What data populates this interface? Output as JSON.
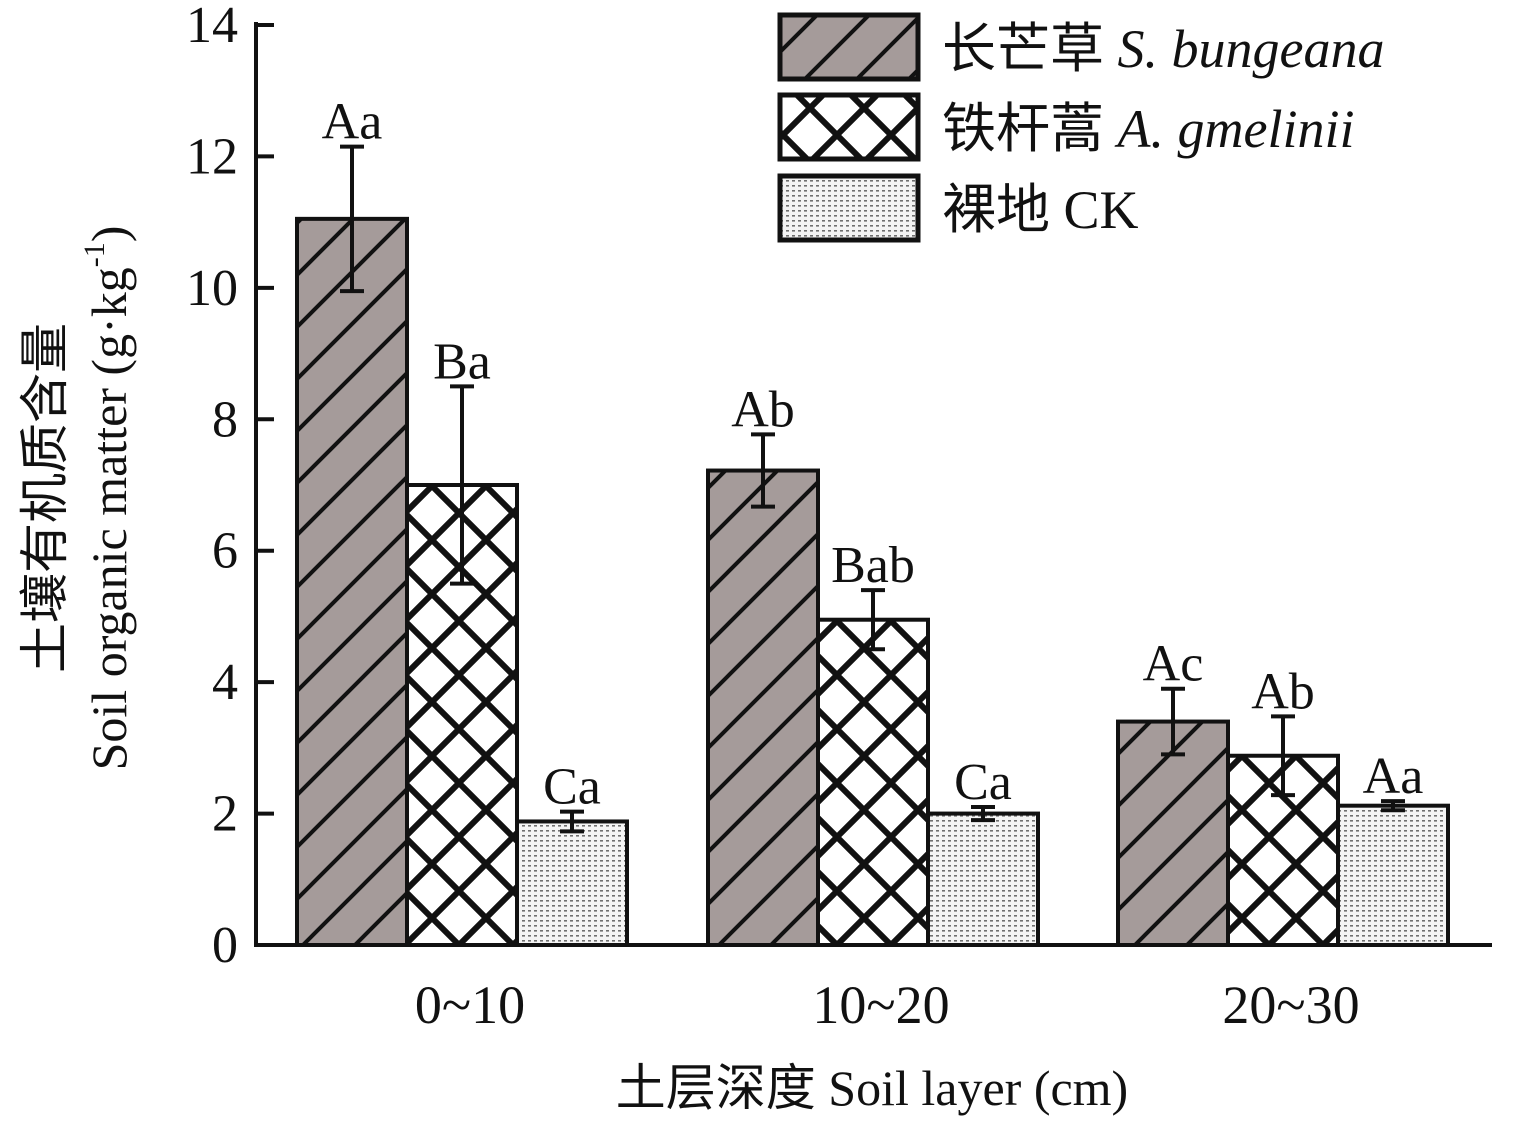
{
  "chart_data": {
    "type": "bar",
    "categories": [
      "0~10",
      "10~20",
      "20~30"
    ],
    "series": [
      {
        "name": "长芒草 S. bungeana",
        "name_cn": "长芒草",
        "name_latin": "S. bungeana",
        "values": [
          11.05,
          7.22,
          3.4
        ],
        "errors": [
          1.1,
          0.55,
          0.5
        ],
        "labels": [
          "Aa",
          "Ab",
          "Ac"
        ],
        "pattern": "diagonal-hatch",
        "fill": "#a59b9a"
      },
      {
        "name": "铁杆蒿 A. gmelinii",
        "name_cn": "铁杆蒿",
        "name_latin": "A. gmelinii",
        "values": [
          7.0,
          4.95,
          2.88
        ],
        "errors": [
          1.5,
          0.45,
          0.6
        ],
        "labels": [
          "Ba",
          "Bab",
          "Ab"
        ],
        "pattern": "crosshatch",
        "fill": "#ffffff"
      },
      {
        "name": "裸地 CK",
        "name_cn": "裸地",
        "name_latin": "CK",
        "values": [
          1.88,
          2.0,
          2.12
        ],
        "errors": [
          0.15,
          0.1,
          0.07
        ],
        "labels": [
          "Ca",
          "Ca",
          "Aa"
        ],
        "pattern": "dots",
        "fill": "#f2f2f2"
      }
    ],
    "ylim": [
      0,
      14
    ],
    "yticks": [
      0,
      2,
      4,
      6,
      8,
      10,
      12,
      14
    ],
    "ylabel_cn": "土壤有机质含量",
    "ylabel_en": "Soil organic matter (g·kg",
    "ylabel_sup": "-1",
    "ylabel_end": ")",
    "xlabel": "土层深度 Soil layer (cm)",
    "legend_position": "top-right",
    "grid": false
  }
}
